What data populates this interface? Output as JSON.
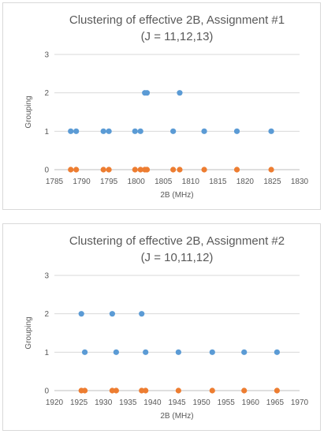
{
  "chart_data": [
    {
      "type": "scatter",
      "title": "Clustering of effective 2B, Assignment #1",
      "subtitle": "(J = 11,12,13)",
      "xlabel": "2B (MHz)",
      "ylabel": "Grouping",
      "xlim": [
        1785,
        1830
      ],
      "ylim": [
        0,
        3
      ],
      "xticks": [
        "1785",
        "1790",
        "1795",
        "1800",
        "1805",
        "1810",
        "1815",
        "1820",
        "1825",
        "1830"
      ],
      "yticks": [
        "0",
        "1",
        "2",
        "3"
      ],
      "grid": "horizontal",
      "legend": "none",
      "series": [
        {
          "color": "#5b9bd5",
          "x": [
            1788.0,
            1789.0,
            1794.0,
            1795.0,
            1799.8,
            1800.8,
            1801.6,
            1802.0,
            1806.8,
            1808.0,
            1812.5,
            1818.5,
            1824.8
          ],
          "y": [
            1,
            1,
            1,
            1,
            1,
            1,
            2,
            2,
            1,
            2,
            1,
            1,
            1
          ]
        },
        {
          "color": "#ed7d31",
          "x": [
            1788.0,
            1789.0,
            1794.0,
            1795.0,
            1799.8,
            1800.8,
            1801.6,
            1802.0,
            1806.8,
            1808.0,
            1812.5,
            1818.5,
            1824.8
          ],
          "y": [
            0,
            0,
            0,
            0,
            0,
            0,
            0,
            0,
            0,
            0,
            0,
            0,
            0
          ]
        }
      ]
    },
    {
      "type": "scatter",
      "title": "Clustering of effective 2B, Assignment #2",
      "subtitle": "(J = 10,11,12)",
      "xlabel": "2B (MHz)",
      "ylabel": "Grouping",
      "xlim": [
        1920,
        1970
      ],
      "ylim": [
        0,
        3
      ],
      "xticks": [
        "1920",
        "1925",
        "1930",
        "1935",
        "1940",
        "1945",
        "1950",
        "1955",
        "1960",
        "1965",
        "1970"
      ],
      "yticks": [
        "0",
        "1",
        "2",
        "3"
      ],
      "grid": "horizontal",
      "legend": "none",
      "series": [
        {
          "color": "#5b9bd5",
          "x": [
            1925.5,
            1926.2,
            1931.8,
            1932.6,
            1937.8,
            1938.6,
            1945.3,
            1952.2,
            1958.7,
            1965.4
          ],
          "y": [
            2,
            1,
            2,
            1,
            2,
            1,
            1,
            1,
            1,
            1
          ]
        },
        {
          "color": "#ed7d31",
          "x": [
            1925.5,
            1926.2,
            1931.8,
            1932.6,
            1937.8,
            1938.6,
            1945.3,
            1952.2,
            1958.7,
            1965.4
          ],
          "y": [
            0,
            0,
            0,
            0,
            0,
            0,
            0,
            0,
            0,
            0
          ]
        }
      ]
    }
  ]
}
